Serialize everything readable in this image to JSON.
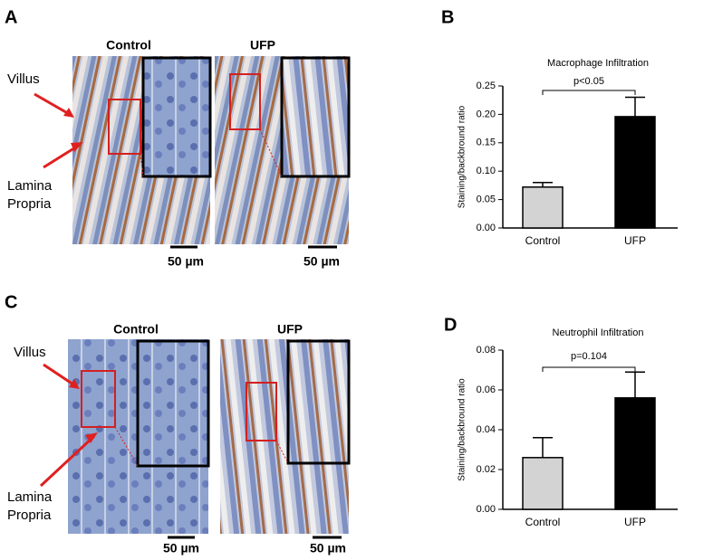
{
  "panel_labels": [
    "A",
    "B",
    "C",
    "D"
  ],
  "micrographs": [
    {
      "conditions": [
        "Control",
        "UFP"
      ],
      "scale_bar": "50 µm",
      "annotations": [
        "Villus",
        "Lamina Propria"
      ]
    },
    {
      "conditions": [
        "Control",
        "UFP"
      ],
      "scale_bar": "50 µm",
      "annotations": [
        "Villus",
        "Lamina Propria"
      ]
    }
  ],
  "chart_data": [
    {
      "type": "bar",
      "title": "Macrophage Infiltration",
      "ylabel": "Staining/backbround ratio",
      "categories": [
        "Control",
        "UFP"
      ],
      "values": [
        0.072,
        0.196
      ],
      "errors": [
        0.008,
        0.034
      ],
      "colors": [
        "#d3d3d3",
        "#000000"
      ],
      "annotation": "p<0.05",
      "ylim": [
        0,
        0.25
      ],
      "yticks": [
        {
          "value": 0,
          "label": "0.00"
        },
        {
          "value": 0.05,
          "label": "0.05"
        },
        {
          "value": 0.1,
          "label": "0.10"
        },
        {
          "value": 0.15,
          "label": "0.15"
        },
        {
          "value": 0.2,
          "label": "0.20"
        },
        {
          "value": 0.25,
          "label": "0.25"
        }
      ]
    },
    {
      "type": "bar",
      "title": "Neutrophil Infiltration",
      "ylabel": "Staining/backbround ratio",
      "categories": [
        "Control",
        "UFP"
      ],
      "values": [
        0.026,
        0.056
      ],
      "errors": [
        0.01,
        0.013
      ],
      "colors": [
        "#d3d3d3",
        "#000000"
      ],
      "annotation": "p=0.104",
      "ylim": [
        0,
        0.08
      ],
      "yticks": [
        {
          "value": 0,
          "label": "0.00"
        },
        {
          "value": 0.02,
          "label": "0.02"
        },
        {
          "value": 0.04,
          "label": "0.04"
        },
        {
          "value": 0.06,
          "label": "0.06"
        },
        {
          "value": 0.08,
          "label": "0.08"
        }
      ]
    }
  ]
}
